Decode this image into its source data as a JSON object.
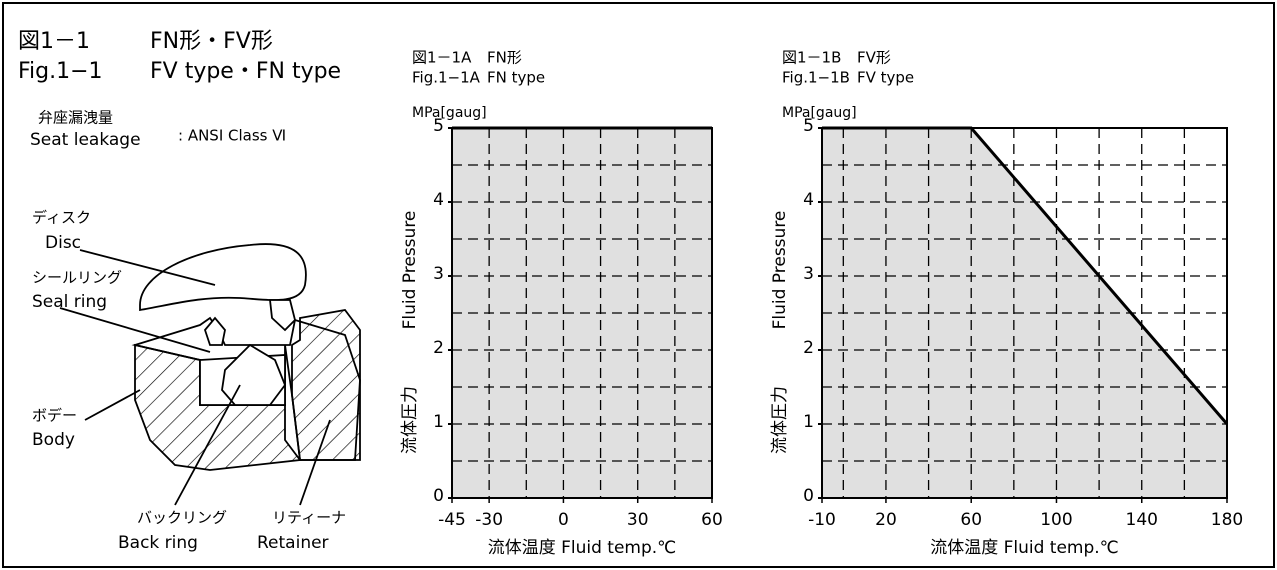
{
  "figure": {
    "title_no": "図1－1",
    "title": "FN形・FV形",
    "fig_no": "Fig.1−1",
    "title_en": "FV type・FN type",
    "leakage_jp": "弁座漏洩量",
    "leakage_en": "Seat leakage",
    "leakage_value": ": ANSI Class Ⅵ",
    "parts": [
      {
        "jp": "ディスク",
        "en": "Disc"
      },
      {
        "jp": "シールリング",
        "en": "Seal ring"
      },
      {
        "jp": "ボデー",
        "en": "Body"
      },
      {
        "jp": "バックリング",
        "en": "Back ring"
      },
      {
        "jp": "リティーナ",
        "en": "Retainer"
      }
    ]
  },
  "chart_data": [
    {
      "type": "area",
      "title_no": "図1－1A",
      "title_jp": "FN形",
      "fig_no": "Fig.1−1A",
      "title_en": "FN type",
      "y_unit": "MPa[gaug]",
      "ylabel_en": "Fluid Pressure",
      "ylabel_jp": "流体圧力",
      "xlabel": "流体温度 Fluid temp.℃",
      "x": [
        -45,
        60
      ],
      "values": [
        5,
        5
      ],
      "color": "#e0e0e0",
      "xlim": [
        -45,
        60
      ],
      "xticks": [
        -45,
        -30,
        0,
        30,
        60
      ],
      "xgrid": [
        -15,
        15,
        45
      ],
      "ylim": [
        0,
        5
      ],
      "yticks": [
        0,
        1,
        2,
        3,
        4,
        5
      ],
      "ygrid": [
        0.5,
        1.5,
        2.5,
        3.5,
        4.5
      ],
      "grid": true
    },
    {
      "type": "area",
      "title_no": "図1－1B",
      "title_jp": "FV形",
      "fig_no": "Fig.1−1B",
      "title_en": "FV type",
      "y_unit": "MPa[gaug]",
      "ylabel_en": "Fluid Pressure",
      "ylabel_jp": "流体圧力",
      "xlabel": "流体温度 Fluid temp.℃",
      "x": [
        -10,
        60,
        180
      ],
      "values": [
        5,
        5,
        1
      ],
      "color": "#e0e0e0",
      "xlim": [
        -10,
        180
      ],
      "xticks": [
        -10,
        20,
        60,
        100,
        140,
        180
      ],
      "xgrid": [
        0,
        40,
        80,
        120,
        160
      ],
      "ylim": [
        0,
        5
      ],
      "yticks": [
        0,
        1,
        2,
        3,
        4,
        5
      ],
      "ygrid": [
        0.5,
        1.5,
        2.5,
        3.5,
        4.5
      ],
      "grid": true
    }
  ]
}
